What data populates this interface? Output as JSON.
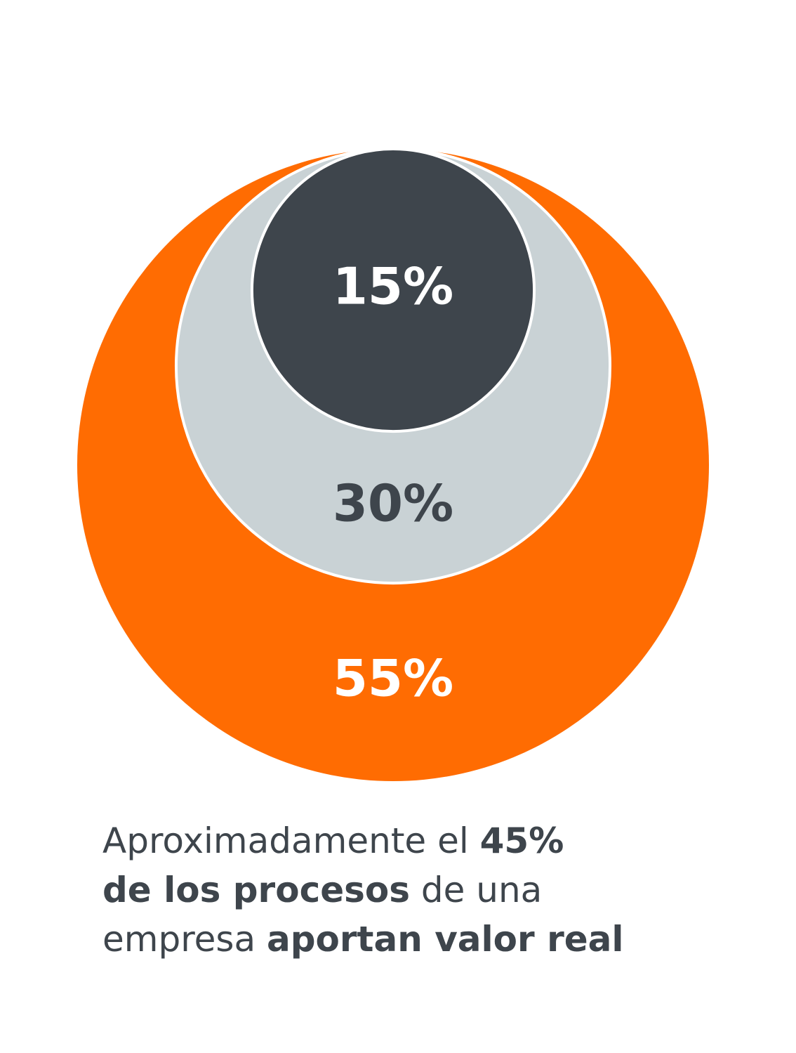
{
  "chart_data": {
    "type": "nested-circles",
    "series": [
      {
        "label": "55%",
        "value": 55,
        "color": "#ff6c02",
        "label_color": "#ffffff"
      },
      {
        "label": "30%",
        "value": 30,
        "color": "#c9d2d5",
        "label_color": "#3e454c"
      },
      {
        "label": "15%",
        "value": 15,
        "color": "#3e454c",
        "label_color": "#ffffff"
      }
    ]
  },
  "caption": {
    "line1_regular": "Aproximadamente el ",
    "line1_bold": "45%",
    "line2_bold": "de los procesos",
    "line2_regular": " de una",
    "line3_regular": "empresa ",
    "line3_bold": "aportan valor real"
  }
}
